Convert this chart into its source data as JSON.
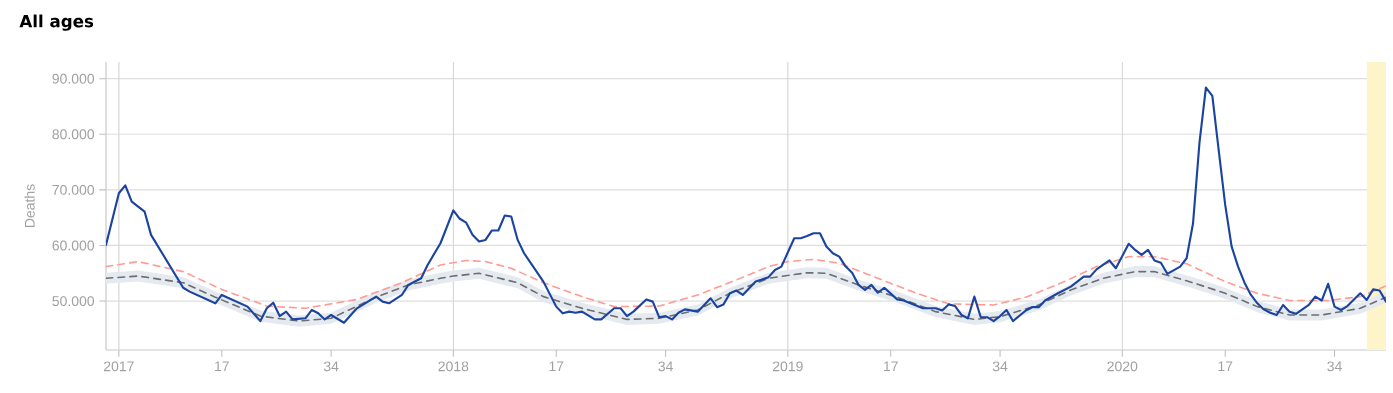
{
  "chart_data": {
    "type": "line",
    "title": "All ages",
    "ylabel": "Deaths",
    "grid": "y",
    "marker": "none",
    "line_style": "solid",
    "xlim": [
      "2016-12-22",
      "2020-10-15"
    ],
    "ylim": [
      41200,
      93000
    ],
    "xticks": [
      {
        "value": "2017-01-05",
        "label": "2017"
      },
      {
        "value": "2017-04-27",
        "label": "17"
      },
      {
        "value": "2017-08-24",
        "label": "34"
      },
      {
        "value": "2018-01-04",
        "label": "2018"
      },
      {
        "value": "2018-04-26",
        "label": "17"
      },
      {
        "value": "2018-08-23",
        "label": "34"
      },
      {
        "value": "2019-01-03",
        "label": "2019"
      },
      {
        "value": "2019-04-25",
        "label": "17"
      },
      {
        "value": "2019-08-22",
        "label": "34"
      },
      {
        "value": "2020-01-02",
        "label": "2020"
      },
      {
        "value": "2020-04-23",
        "label": "17"
      },
      {
        "value": "2020-08-20",
        "label": "34"
      }
    ],
    "yticks": [
      {
        "value": 50000,
        "label": "50.000"
      },
      {
        "value": 60000,
        "label": "60.000"
      },
      {
        "value": 70000,
        "label": "70.000"
      },
      {
        "value": 80000,
        "label": "80.000"
      },
      {
        "value": 90000,
        "label": "90.000"
      }
    ],
    "ref_lines": [
      {
        "axis": "x",
        "value": "2017-01-05",
        "color": "#d6d6d6"
      },
      {
        "axis": "x",
        "value": "2018-01-04",
        "color": "#d6d6d6"
      },
      {
        "axis": "x",
        "value": "2019-01-03",
        "color": "#d6d6d6"
      },
      {
        "axis": "x",
        "value": "2020-01-02",
        "color": "#d6d6d6"
      }
    ],
    "bands": [
      {
        "axis": "x",
        "from": "2020-09-24",
        "to": "2020-10-15",
        "color": "#fdf5c9"
      }
    ],
    "series": [
      {
        "color": "#6e6e6e",
        "line_style": "dashed",
        "x": [
          "2016-12-22",
          "2017-01-26",
          "2017-03-16",
          "2017-04-20",
          "2017-06-08",
          "2017-07-20",
          "2017-08-24",
          "2017-10-12",
          "2017-11-16",
          "2017-12-21",
          "2018-01-04",
          "2018-02-01",
          "2018-03-15",
          "2018-04-12",
          "2018-05-24",
          "2018-07-12",
          "2018-08-16",
          "2018-09-27",
          "2018-11-01",
          "2018-12-13",
          "2019-01-24",
          "2019-02-14",
          "2019-03-21",
          "2019-05-02",
          "2019-06-13",
          "2019-07-25",
          "2019-08-22",
          "2019-10-03",
          "2019-11-07",
          "2019-12-12",
          "2020-01-16",
          "2020-02-06",
          "2020-03-19",
          "2020-04-23",
          "2020-05-28",
          "2020-07-02",
          "2020-08-06",
          "2020-09-17",
          "2020-10-15"
        ],
        "values": [
          54100,
          54500,
          53300,
          50700,
          47300,
          46400,
          46900,
          50700,
          52900,
          54100,
          54500,
          55000,
          53300,
          50800,
          48700,
          46700,
          46900,
          48400,
          51400,
          54100,
          55100,
          55000,
          52900,
          50700,
          48100,
          46700,
          47200,
          49300,
          52000,
          54100,
          55300,
          55300,
          53300,
          51400,
          49000,
          47500,
          47500,
          48700,
          50700
        ],
        "lower": [
          53100,
          53500,
          52300,
          49700,
          46300,
          45400,
          45900,
          49700,
          51900,
          53100,
          53500,
          54000,
          52300,
          49800,
          47700,
          45700,
          45900,
          47400,
          50400,
          53100,
          54100,
          54000,
          51900,
          49700,
          47100,
          45700,
          46200,
          48300,
          51000,
          53100,
          54300,
          54300,
          52300,
          50400,
          48000,
          46500,
          46500,
          47700,
          49700
        ],
        "upper": [
          55100,
          55500,
          54300,
          51700,
          48300,
          47400,
          47900,
          51700,
          53900,
          55100,
          55500,
          56000,
          54300,
          51800,
          49700,
          47700,
          47900,
          49400,
          52400,
          55100,
          56100,
          56000,
          53900,
          51700,
          49100,
          47700,
          48200,
          50300,
          53000,
          55100,
          56300,
          56300,
          54300,
          52400,
          50000,
          48500,
          48500,
          49700,
          51700
        ]
      },
      {
        "color": "#ff9b93",
        "line_style": "dashed",
        "x": [
          "2016-12-22",
          "2017-01-26",
          "2017-03-16",
          "2017-04-27",
          "2017-06-15",
          "2017-07-27",
          "2017-09-21",
          "2017-11-09",
          "2017-12-21",
          "2018-01-18",
          "2018-02-08",
          "2018-03-08",
          "2018-04-12",
          "2018-05-24",
          "2018-06-28",
          "2018-08-16",
          "2018-09-27",
          "2018-11-08",
          "2018-12-13",
          "2019-01-03",
          "2019-01-31",
          "2019-02-28",
          "2019-04-11",
          "2019-05-23",
          "2019-06-27",
          "2019-08-15",
          "2019-09-19",
          "2019-10-31",
          "2019-12-05",
          "2020-01-09",
          "2020-02-06",
          "2020-03-12",
          "2020-04-23",
          "2020-05-28",
          "2020-07-02",
          "2020-08-13",
          "2020-09-17",
          "2020-10-15"
        ],
        "values": [
          56200,
          57100,
          55300,
          52100,
          49100,
          48700,
          50300,
          53300,
          56500,
          57300,
          57100,
          55900,
          53300,
          50800,
          49000,
          49100,
          51100,
          53800,
          56200,
          57100,
          57500,
          56800,
          54100,
          51400,
          49500,
          49300,
          50700,
          53500,
          56200,
          58000,
          58000,
          56700,
          53500,
          51400,
          50100,
          50100,
          50800,
          52700
        ]
      },
      {
        "color": "#1b44a0",
        "x": [
          "2016-12-22",
          "2017-01-05",
          "2017-01-12",
          "2017-01-19",
          "2017-02-02",
          "2017-02-09",
          "2017-03-16",
          "2017-03-23",
          "2017-04-20",
          "2017-04-27",
          "2017-05-25",
          "2017-06-08",
          "2017-06-15",
          "2017-06-22",
          "2017-06-29",
          "2017-07-06",
          "2017-07-13",
          "2017-07-27",
          "2017-08-03",
          "2017-08-10",
          "2017-08-17",
          "2017-08-24",
          "2017-09-07",
          "2017-09-21",
          "2017-10-12",
          "2017-10-19",
          "2017-10-26",
          "2017-11-09",
          "2017-11-16",
          "2017-11-30",
          "2017-12-07",
          "2017-12-21",
          "2018-01-04",
          "2018-01-11",
          "2018-01-18",
          "2018-01-25",
          "2018-02-01",
          "2018-02-08",
          "2018-02-15",
          "2018-02-22",
          "2018-03-01",
          "2018-03-08",
          "2018-03-15",
          "2018-03-22",
          "2018-04-12",
          "2018-04-26",
          "2018-05-03",
          "2018-05-10",
          "2018-05-17",
          "2018-05-24",
          "2018-06-07",
          "2018-06-14",
          "2018-06-28",
          "2018-07-05",
          "2018-07-12",
          "2018-07-19",
          "2018-08-02",
          "2018-08-09",
          "2018-08-16",
          "2018-08-23",
          "2018-08-30",
          "2018-09-06",
          "2018-09-13",
          "2018-09-27",
          "2018-10-11",
          "2018-10-18",
          "2018-10-25",
          "2018-11-01",
          "2018-11-08",
          "2018-11-15",
          "2018-11-29",
          "2018-12-06",
          "2018-12-13",
          "2018-12-20",
          "2018-12-27",
          "2019-01-10",
          "2019-01-17",
          "2019-01-24",
          "2019-01-31",
          "2019-02-07",
          "2019-02-14",
          "2019-02-21",
          "2019-02-28",
          "2019-03-07",
          "2019-03-14",
          "2019-03-21",
          "2019-03-28",
          "2019-04-04",
          "2019-04-11",
          "2019-04-18",
          "2019-05-02",
          "2019-05-09",
          "2019-05-30",
          "2019-06-13",
          "2019-06-20",
          "2019-06-27",
          "2019-07-04",
          "2019-07-11",
          "2019-07-18",
          "2019-07-25",
          "2019-08-01",
          "2019-08-08",
          "2019-08-15",
          "2019-08-22",
          "2019-08-29",
          "2019-09-05",
          "2019-09-19",
          "2019-09-26",
          "2019-10-03",
          "2019-10-10",
          "2019-10-24",
          "2019-11-07",
          "2019-11-21",
          "2019-11-28",
          "2019-12-05",
          "2019-12-19",
          "2019-12-26",
          "2020-01-09",
          "2020-01-16",
          "2020-01-23",
          "2020-01-30",
          "2020-02-06",
          "2020-02-13",
          "2020-02-20",
          "2020-03-05",
          "2020-03-12",
          "2020-03-19",
          "2020-03-26",
          "2020-04-02",
          "2020-04-09",
          "2020-04-16",
          "2020-04-23",
          "2020-04-30",
          "2020-05-07",
          "2020-05-14",
          "2020-05-21",
          "2020-05-28",
          "2020-06-04",
          "2020-06-11",
          "2020-06-18",
          "2020-06-25",
          "2020-07-02",
          "2020-07-09",
          "2020-07-16",
          "2020-07-23",
          "2020-07-30",
          "2020-08-06",
          "2020-08-13",
          "2020-08-20",
          "2020-08-27",
          "2020-09-03",
          "2020-09-17",
          "2020-09-24",
          "2020-10-01",
          "2020-10-08",
          "2020-10-15"
        ],
        "values": [
          60100,
          69400,
          70800,
          67900,
          66100,
          61900,
          52400,
          51700,
          49600,
          51100,
          49000,
          46400,
          48700,
          49700,
          47300,
          48100,
          46700,
          46900,
          48400,
          47800,
          46700,
          47500,
          46100,
          48700,
          50800,
          49900,
          49600,
          51100,
          52900,
          54100,
          56500,
          60400,
          66300,
          64800,
          64100,
          61900,
          60700,
          61000,
          62700,
          62700,
          65400,
          65200,
          61000,
          58600,
          53500,
          49000,
          47800,
          48100,
          47900,
          48100,
          46700,
          46700,
          48700,
          48700,
          47300,
          48100,
          50300,
          49900,
          47100,
          47300,
          46700,
          47900,
          48500,
          48100,
          50500,
          48900,
          49400,
          51400,
          51900,
          51100,
          53500,
          53900,
          54300,
          55600,
          56200,
          61300,
          61300,
          61700,
          62200,
          62200,
          59800,
          58600,
          58000,
          56200,
          55100,
          52900,
          52000,
          52900,
          51500,
          52400,
          50300,
          50100,
          48700,
          48700,
          48300,
          49400,
          49100,
          47500,
          46900,
          50800,
          47100,
          47100,
          46400,
          47300,
          48400,
          46400,
          48300,
          48900,
          48900,
          50100,
          51400,
          52600,
          54400,
          54400,
          55700,
          57300,
          55900,
          60300,
          59200,
          58300,
          59200,
          57300,
          56900,
          54900,
          56200,
          57700,
          64000,
          78500,
          88400,
          86900,
          77000,
          67300,
          59800,
          56200,
          53300,
          51100,
          49600,
          48500,
          47900,
          47500,
          49300,
          48100,
          47700,
          48500,
          49300,
          50800,
          50100,
          53100,
          49000,
          48400,
          49100,
          51400,
          50200,
          52100,
          51900,
          49900
        ]
      }
    ]
  }
}
